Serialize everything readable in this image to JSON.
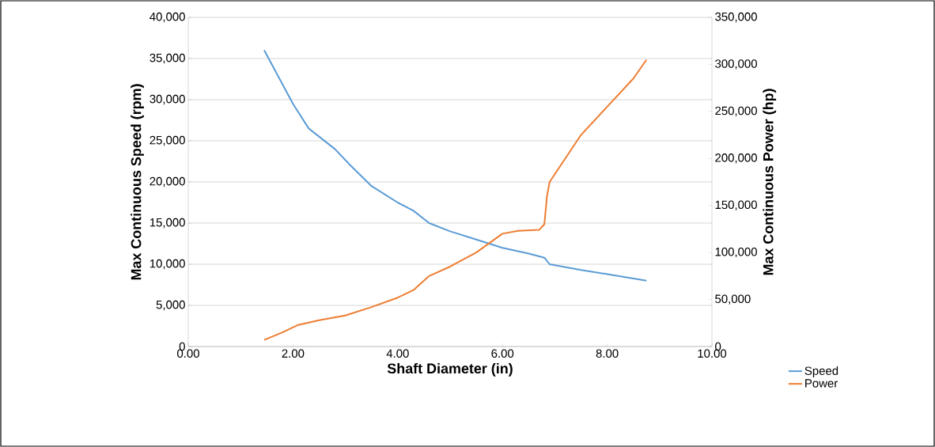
{
  "chart_data": {
    "type": "line",
    "xlabel": "Shaft Diameter (in)",
    "ylabel": "Max Continuous Speed (rpm)",
    "y2label": "Max Continuous Power (hp)",
    "series": [
      {
        "name": "Speed",
        "color": "#5b9bd5",
        "x": [
          1.45,
          2.0,
          2.3,
          2.8,
          3.1,
          3.5,
          4.0,
          4.3,
          4.6,
          5.0,
          5.5,
          6.0,
          6.5,
          6.8,
          6.9,
          7.5,
          8.0,
          8.75
        ],
        "values": [
          36000,
          29500,
          26500,
          24000,
          22000,
          19500,
          17500,
          16500,
          15000,
          14000,
          13000,
          12000,
          11300,
          10800,
          10000,
          9300,
          8800,
          8000
        ]
      },
      {
        "name": "Power",
        "color": "#ed7d31",
        "axis": "y2",
        "x": [
          1.45,
          1.8,
          2.1,
          2.5,
          3.0,
          3.5,
          4.0,
          4.3,
          4.6,
          5.0,
          5.5,
          6.0,
          6.3,
          6.7,
          6.8,
          6.85,
          6.9,
          7.2,
          7.5,
          8.0,
          8.5,
          8.75
        ],
        "values": [
          7000,
          15000,
          23000,
          28000,
          33000,
          42000,
          52000,
          60000,
          75000,
          85000,
          100000,
          120000,
          123000,
          124000,
          130000,
          160000,
          175000,
          200000,
          225000,
          255000,
          285000,
          305000
        ]
      }
    ],
    "xlim": [
      0,
      10
    ],
    "xticks": [
      {
        "value": 0,
        "label": "0.00"
      },
      {
        "value": 2,
        "label": "2.00"
      },
      {
        "value": 4,
        "label": "4.00"
      },
      {
        "value": 6,
        "label": "6.00"
      },
      {
        "value": 8,
        "label": "8.00"
      },
      {
        "value": 10,
        "label": "10.00"
      }
    ],
    "ylim": [
      0,
      40000
    ],
    "yticks": [
      0,
      {
        "value": 5000,
        "label": "5,000"
      },
      {
        "value": 10000,
        "label": "10,000"
      },
      {
        "value": 15000,
        "label": "15,000"
      },
      {
        "value": 20000,
        "label": "20,000"
      },
      {
        "value": 25000,
        "label": "25,000"
      },
      {
        "value": 30000,
        "label": "30,000"
      },
      {
        "value": 35000,
        "label": "35,000"
      },
      {
        "value": 40000,
        "label": "40,000"
      }
    ],
    "y2lim": [
      0,
      350000
    ],
    "y2ticks": [
      0,
      {
        "value": 50000,
        "label": "50,000"
      },
      {
        "value": 100000,
        "label": "100,000"
      },
      {
        "value": 150000,
        "label": "150,000"
      },
      {
        "value": 200000,
        "label": "200,000"
      },
      {
        "value": 250000,
        "label": "250,000"
      },
      {
        "value": 300000,
        "label": "300,000"
      },
      {
        "value": 350000,
        "label": "350,000"
      }
    ],
    "grid": "y",
    "legend": "bottom right",
    "marker": "none",
    "line_style": "solid"
  }
}
